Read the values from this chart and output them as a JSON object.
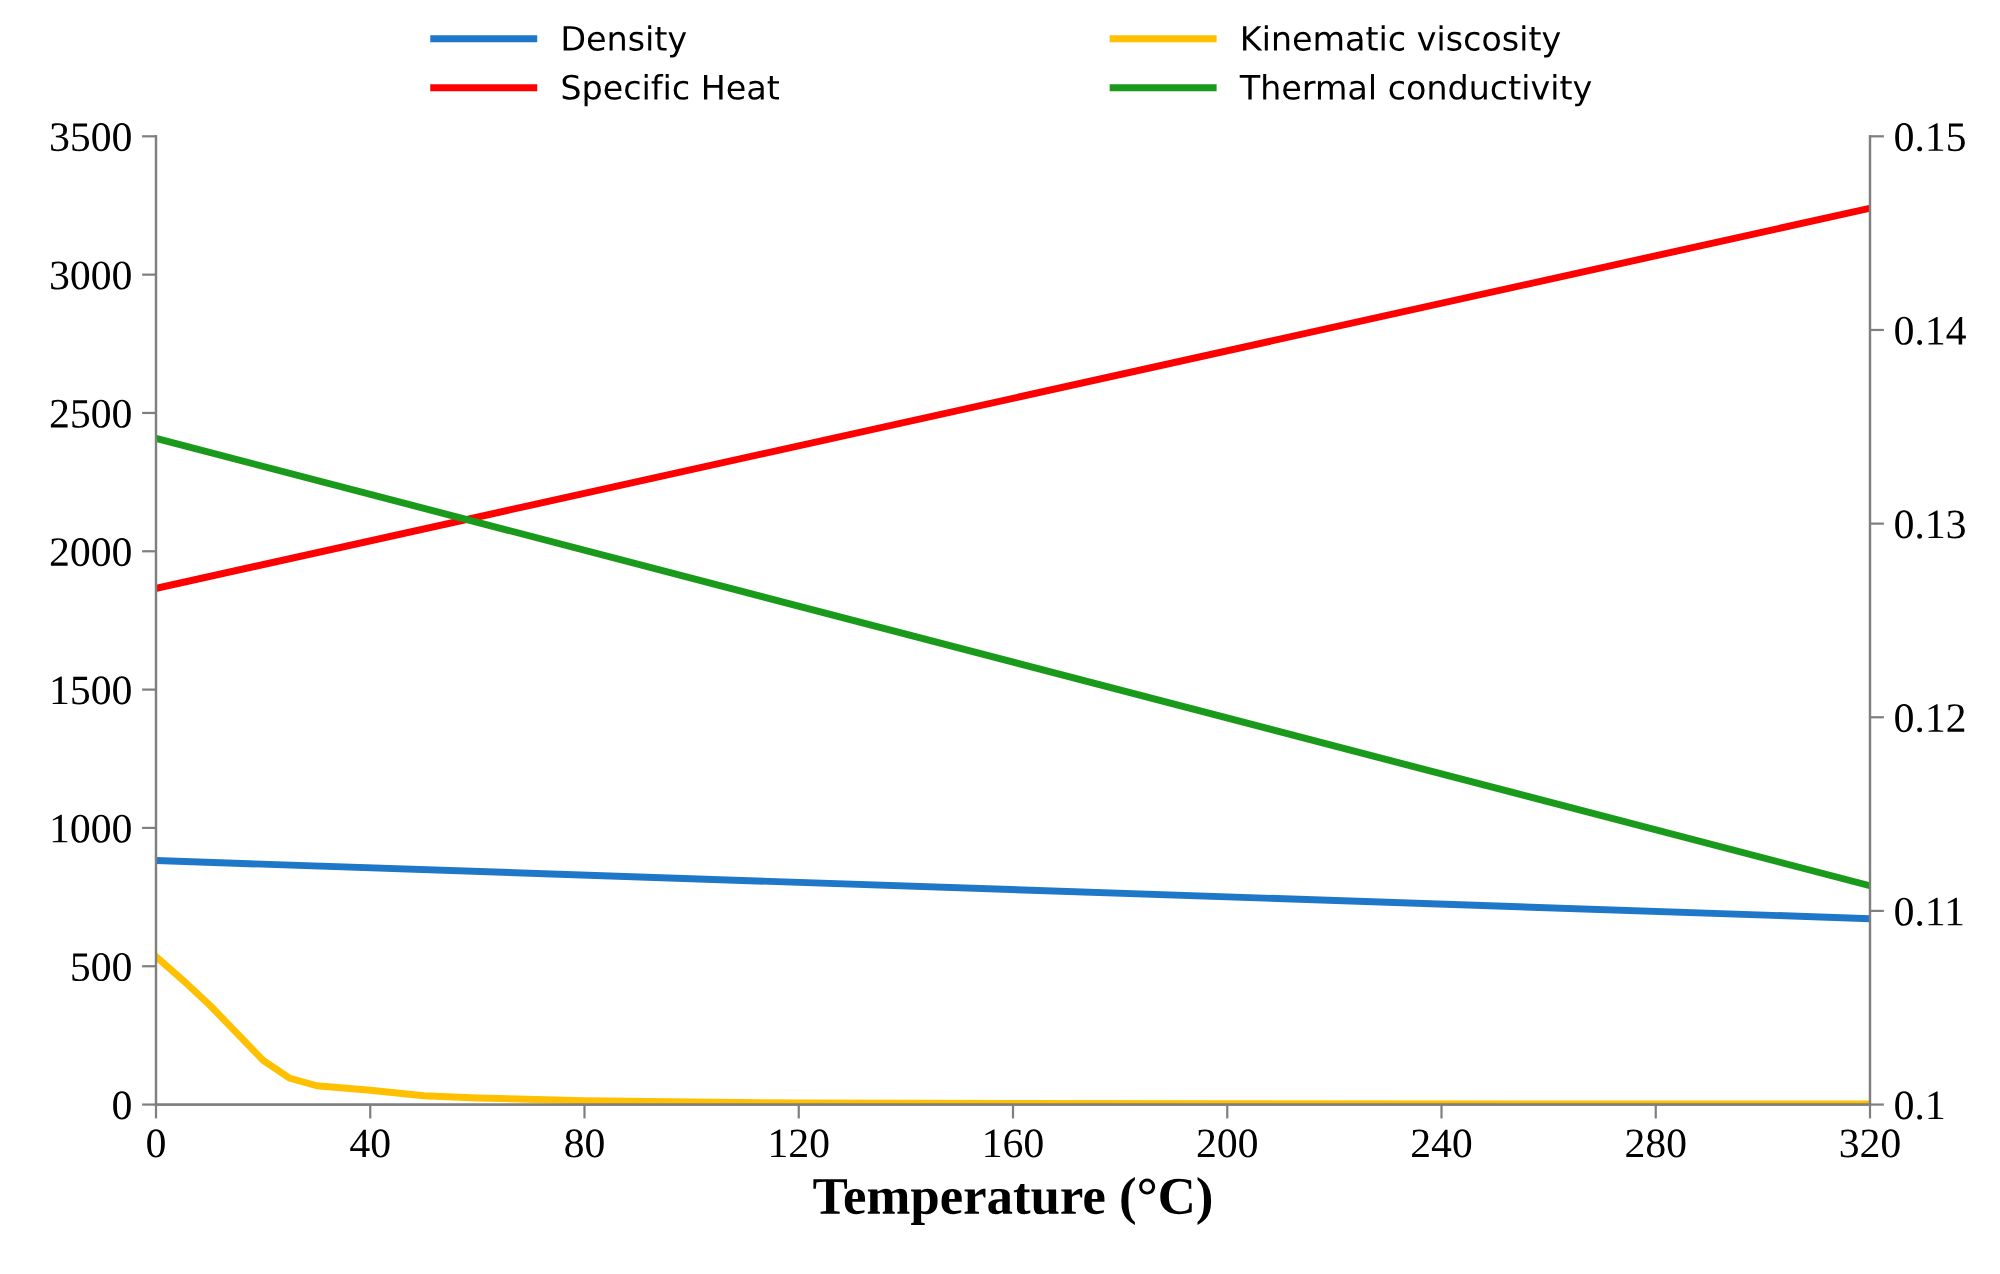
{
  "chart_data": {
    "type": "line",
    "xlabel": "Temperature (°C)",
    "xlim": [
      0,
      320
    ],
    "xticks": [
      0,
      40,
      80,
      120,
      160,
      200,
      240,
      280,
      320
    ],
    "ylim": [
      0,
      3500
    ],
    "yticks": [
      0,
      500,
      1000,
      1500,
      2000,
      2500,
      3000,
      3500
    ],
    "y2lim": [
      0.1,
      0.15
    ],
    "y2ticks": [
      {
        "value": 0.1,
        "label": "0.1"
      },
      0.11,
      0.12,
      0.13,
      0.14,
      0.15
    ],
    "grid": false,
    "legend": "top",
    "marker": "none",
    "line_style": "solid",
    "series": [
      {
        "name": "Density",
        "color": "#1f77c8",
        "x": [
          0,
          320
        ],
        "values": [
          882,
          672
        ]
      },
      {
        "name": "Specific Heat",
        "color": "#ff0000",
        "x": [
          0,
          320
        ],
        "values": [
          1866,
          3240
        ]
      },
      {
        "name": "Kinematic viscosity",
        "color": "#ffc000",
        "x": [
          0,
          5,
          10,
          15,
          20,
          25,
          30,
          40,
          50,
          60,
          80,
          100,
          120,
          160,
          200,
          320
        ],
        "values": [
          535,
          450,
          360,
          260,
          160,
          95,
          68,
          52,
          32,
          24,
          14,
          9,
          6,
          4,
          3,
          2
        ]
      },
      {
        "name": "Thermal conductivity",
        "color": "#1a9a1a",
        "axis": "y2",
        "x": [
          0,
          320
        ],
        "values": [
          0.1344,
          0.1113
        ]
      }
    ]
  }
}
